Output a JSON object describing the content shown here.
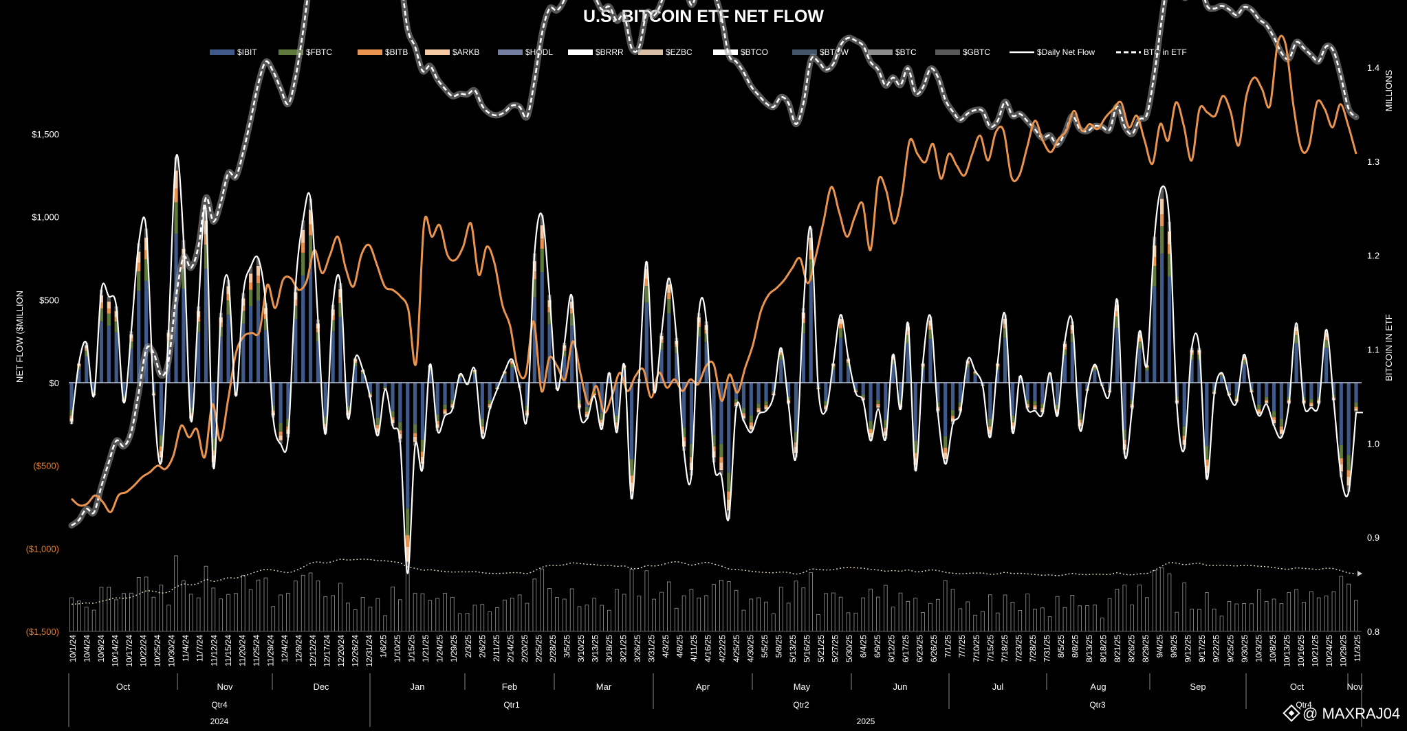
{
  "chart_data": {
    "type": "bar",
    "title": "U.S. BITCOIN ETF NET FLOW",
    "ylabel": "NET FLOW ($MILLION",
    "y2label": "BITCOIN IN ETF",
    "y2unit": "MILLIONS",
    "ylim": [
      -1500,
      1500
    ],
    "y2lim": [
      0.8,
      1.4
    ],
    "y_ticks": [
      "$1,500",
      "$1,000",
      "$500",
      "$0",
      "($500)",
      "($1,000)",
      "($1,500)"
    ],
    "y2_ticks": [
      "1.4",
      "1.3",
      "1.2",
      "1.1",
      "1.0",
      "0.9",
      "0.8"
    ],
    "legend": [
      {
        "name": "$IBIT",
        "color": "#3f5a88",
        "kind": "bar"
      },
      {
        "name": "$FBTC",
        "color": "#5f7a3c",
        "kind": "bar"
      },
      {
        "name": "$BITB",
        "color": "#e9934f",
        "kind": "bar"
      },
      {
        "name": "$ARKB",
        "color": "#f4c9a4",
        "kind": "bar"
      },
      {
        "name": "$HODL",
        "color": "#737d9f",
        "kind": "bar"
      },
      {
        "name": "$BRRR",
        "color": "#ffffff",
        "kind": "bar"
      },
      {
        "name": "$EZBC",
        "color": "#d8bfa5",
        "kind": "bar"
      },
      {
        "name": "$BTCO",
        "color": "#ffffff",
        "kind": "bar"
      },
      {
        "name": "$BTCW",
        "color": "#44546a",
        "kind": "bar"
      },
      {
        "name": "$BTC",
        "color": "#8c8c8c",
        "kind": "bar"
      },
      {
        "name": "$GBTC",
        "color": "#595959",
        "kind": "bar"
      },
      {
        "name": "$Daily Net Flow",
        "color": "#ffffff",
        "kind": "line"
      },
      {
        "name": "BTC in ETF",
        "color": "#ffffff",
        "kind": "dashed"
      }
    ],
    "x_dates": [
      "10/1/24",
      "10/4/24",
      "10/9/24",
      "10/14/24",
      "10/17/24",
      "10/22/24",
      "10/25/24",
      "10/30/24",
      "11/4/24",
      "11/7/24",
      "11/12/24",
      "11/15/24",
      "11/20/24",
      "11/25/24",
      "11/29/24",
      "12/4/24",
      "12/9/24",
      "12/12/24",
      "12/17/24",
      "12/20/24",
      "12/26/24",
      "12/31/24",
      "1/6/25",
      "1/10/25",
      "1/15/25",
      "1/21/25",
      "1/24/25",
      "1/29/25",
      "2/3/25",
      "2/6/25",
      "2/11/25",
      "2/14/25",
      "2/20/25",
      "2/25/25",
      "2/28/25",
      "3/5/25",
      "3/10/25",
      "3/13/25",
      "3/18/25",
      "3/21/25",
      "3/26/25",
      "3/31/25",
      "4/3/25",
      "4/8/25",
      "4/11/25",
      "4/16/25",
      "4/22/25",
      "4/25/25",
      "4/30/25",
      "5/5/25",
      "5/8/25",
      "5/13/25",
      "5/16/25",
      "5/21/25",
      "5/27/25",
      "5/30/25",
      "6/4/25",
      "6/9/25",
      "6/12/25",
      "6/17/25",
      "6/23/25",
      "6/26/25",
      "7/1/25",
      "7/7/25",
      "7/10/25",
      "7/15/25",
      "7/18/25",
      "7/23/25",
      "7/28/25",
      "7/31/25",
      "8/5/25",
      "8/8/25",
      "8/13/25",
      "8/18/25",
      "8/21/25",
      "8/26/25",
      "8/29/25",
      "9/4/25",
      "9/9/25",
      "9/12/25",
      "9/17/25",
      "9/22/25",
      "9/25/25",
      "9/30/25",
      "10/3/25",
      "10/8/25",
      "10/13/25",
      "10/16/25",
      "10/21/25",
      "10/24/25",
      "10/29/25",
      "11/3/25"
    ],
    "months": [
      "Oct",
      "Nov",
      "Dec",
      "Jan",
      "Feb",
      "Mar",
      "Apr",
      "May",
      "Jun",
      "Jul",
      "Aug",
      "Sep",
      "Oct",
      "Nov"
    ],
    "quarters": [
      "Qtr4",
      "Qtr1",
      "Qtr2",
      "Qtr3",
      "Qtr4"
    ],
    "years": [
      "2024",
      "2025"
    ],
    "daily_net_flow": [
      -250,
      120,
      240,
      -80,
      560,
      520,
      460,
      -120,
      310,
      840,
      930,
      -80,
      -480,
      320,
      1360,
      860,
      -230,
      460,
      1040,
      -510,
      420,
      620,
      -80,
      540,
      700,
      750,
      480,
      -210,
      -370,
      -330,
      580,
      980,
      1110,
      380,
      -310,
      470,
      600,
      -210,
      150,
      80,
      -90,
      -320,
      -40,
      -260,
      -360,
      -1150,
      -380,
      -520,
      110,
      -290,
      -200,
      -160,
      50,
      -10,
      80,
      -330,
      -160,
      -40,
      70,
      140,
      -30,
      -210,
      780,
      1010,
      530,
      -40,
      240,
      520,
      -160,
      -220,
      -80,
      -280,
      60,
      -300,
      110,
      -700,
      20,
      730,
      -50,
      300,
      630,
      270,
      -410,
      -560,
      420,
      370,
      -480,
      -560,
      -820,
      -150,
      -230,
      -300,
      -190,
      -170,
      -80,
      210,
      -130,
      -450,
      450,
      930,
      -40,
      -170,
      120,
      410,
      150,
      -60,
      -110,
      -350,
      -160,
      -340,
      170,
      -160,
      360,
      -530,
      120,
      400,
      -180,
      -490,
      -250,
      -180,
      140,
      70,
      -20,
      -330,
      120,
      410,
      -300,
      40,
      -160,
      -170,
      -190,
      60,
      -200,
      250,
      370,
      -280,
      -50,
      110,
      -20,
      -60,
      500,
      -430,
      -160,
      310,
      110,
      880,
      1180,
      970,
      -130,
      -400,
      210,
      210,
      -580,
      -70,
      60,
      -80,
      -120,
      170,
      -60,
      -200,
      -130,
      -260,
      -330,
      -130,
      360,
      -130,
      -150,
      -130,
      320,
      -110,
      -570,
      -660,
      -180
    ],
    "bitb_line": [
      -700,
      -740,
      -730,
      -680,
      -720,
      -780,
      -680,
      -660,
      -620,
      -570,
      -540,
      -500,
      -520,
      -440,
      -260,
      -330,
      -280,
      -450,
      -130,
      -350,
      -100,
      180,
      280,
      300,
      310,
      590,
      450,
      620,
      630,
      560,
      610,
      800,
      660,
      770,
      880,
      690,
      580,
      770,
      830,
      710,
      580,
      560,
      520,
      440,
      120,
      960,
      880,
      950,
      770,
      740,
      820,
      960,
      650,
      820,
      720,
      470,
      340,
      80,
      50,
      370,
      -50,
      150,
      100,
      20,
      250,
      50,
      -130,
      -20,
      -180,
      -80,
      60,
      -50,
      40,
      80,
      -90,
      60,
      -30,
      20,
      -50,
      20,
      -10,
      100,
      110,
      -110,
      50,
      -60,
      90,
      230,
      430,
      530,
      570,
      620,
      690,
      750,
      600,
      760,
      970,
      1180,
      1030,
      880,
      1000,
      1080,
      800,
      1220,
      1160,
      960,
      1130,
      1460,
      1380,
      1330,
      1440,
      1230,
      1380,
      1310,
      1250,
      1380,
      1490,
      1340,
      1510,
      1520,
      1240,
      1250,
      1420,
      1580,
      1460,
      1390,
      1470,
      1520,
      1640,
      1520,
      1560,
      1530,
      1600,
      1650,
      1690,
      1540,
      1610,
      1460,
      1320,
      1560,
      1460,
      1690,
      1550,
      1340,
      1650,
      1630,
      1610,
      1730,
      1630,
      1430,
      1730,
      1840,
      1770,
      1670,
      2050,
      2040,
      1670,
      1410,
      1430,
      1690,
      1650,
      1540,
      1680,
      1550,
      1380
    ],
    "btc_in_etf_start": 0.925,
    "btc_in_etf_end": 1.347
  },
  "watermark": "@ MAXRAJ04"
}
